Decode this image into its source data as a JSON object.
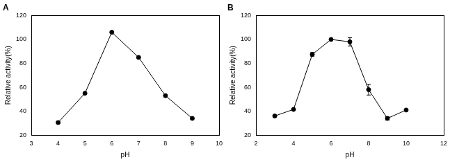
{
  "chart_data": [
    {
      "type": "line",
      "title": "A",
      "x_label": "pH",
      "y_label": "Relative activity(%)",
      "x": [
        4,
        5,
        6,
        7,
        8,
        9
      ],
      "values": [
        30.5,
        55,
        106,
        85,
        53,
        34
      ],
      "color": "#000000",
      "marker": "circle",
      "xlim": [
        3,
        10
      ],
      "xticks": [
        3,
        4,
        5,
        6,
        7,
        8,
        9,
        10
      ],
      "ylim": [
        20,
        120
      ],
      "yticks": [
        20,
        40,
        60,
        80,
        100,
        120
      ],
      "grid": false
    },
    {
      "type": "line",
      "title": "B",
      "x_label": "pH",
      "y_label": "Relative activity(%)",
      "x": [
        3,
        4,
        5,
        6,
        7,
        8,
        9,
        10
      ],
      "values": [
        36,
        41.5,
        87.5,
        100,
        98,
        58,
        34,
        41
      ],
      "errors": [
        0.5,
        0.8,
        1.5,
        0.8,
        3.5,
        4.5,
        1.5,
        0.8
      ],
      "color": "#000000",
      "marker": "circle",
      "xlim": [
        2,
        12
      ],
      "xticks": [
        2,
        4,
        6,
        8,
        10,
        12
      ],
      "ylim": [
        20,
        120
      ],
      "yticks": [
        20,
        40,
        60,
        80,
        100,
        120
      ],
      "grid": false
    }
  ]
}
